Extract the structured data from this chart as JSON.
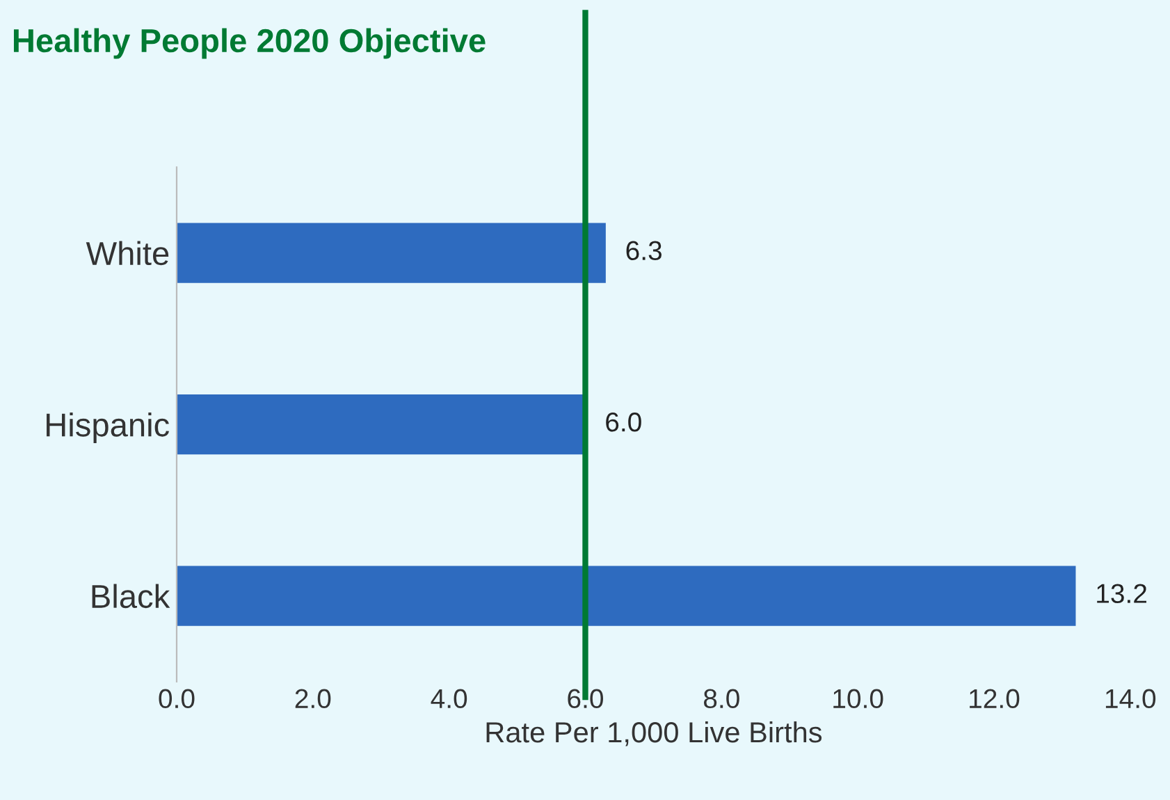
{
  "chart_data": {
    "type": "bar",
    "orientation": "horizontal",
    "categories": [
      "White",
      "Hispanic",
      "Black"
    ],
    "values": [
      6.3,
      6.0,
      13.2
    ],
    "color": "#2e6bbf",
    "value_labels": [
      "6.3",
      "6.0",
      "13.2"
    ],
    "xlim": [
      0,
      14
    ],
    "xticks": [
      {
        "value": 0,
        "label": "0.0"
      },
      {
        "value": 2,
        "label": "2.0"
      },
      {
        "value": 4,
        "label": "4.0"
      },
      {
        "value": 6,
        "label": "6.0"
      },
      {
        "value": 8,
        "label": "8.0"
      },
      {
        "value": 10,
        "label": "10.0"
      },
      {
        "value": 12,
        "label": "12.0"
      },
      {
        "value": 14,
        "label": "14.0"
      }
    ],
    "xlabel": "Rate Per 1,000 Live Births",
    "grid": false,
    "legend": false,
    "ref_lines": [
      {
        "axis": "x",
        "value": 6.0,
        "label": "Healthy People 2020 Objective",
        "color": "#007a33",
        "line_style": "solid"
      }
    ]
  }
}
